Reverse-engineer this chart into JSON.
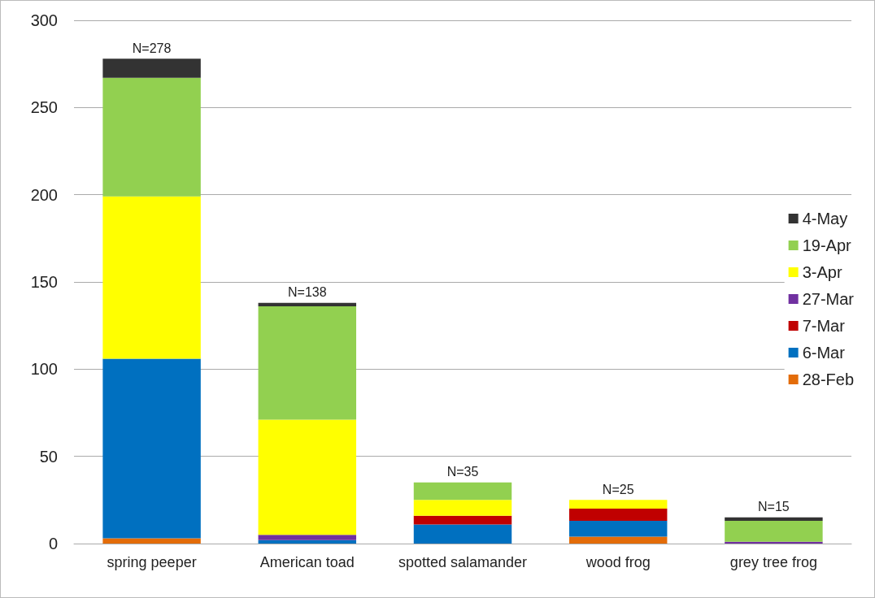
{
  "chart_data": {
    "type": "bar",
    "stacked": true,
    "categories": [
      "spring peeper",
      "American toad",
      "spotted salamander",
      "wood frog",
      "grey tree frog"
    ],
    "series": [
      {
        "name": "28-Feb",
        "color": "#e36c09",
        "values": [
          3,
          null,
          null,
          4,
          null
        ]
      },
      {
        "name": "6-Mar",
        "color": "#0070c0",
        "values": [
          103,
          2,
          11,
          9,
          null
        ]
      },
      {
        "name": "7-Mar",
        "color": "#c00000",
        "values": [
          null,
          null,
          5,
          7,
          null
        ]
      },
      {
        "name": "27-Mar",
        "color": "#7030a0",
        "values": [
          null,
          3,
          null,
          null,
          1
        ]
      },
      {
        "name": "3-Apr",
        "color": "#ffff00",
        "values": [
          93,
          66,
          9,
          5,
          null
        ]
      },
      {
        "name": "19-Apr",
        "color": "#92d050",
        "values": [
          68,
          65,
          10,
          null,
          12
        ]
      },
      {
        "name": "4-May",
        "color": "#333333",
        "values": [
          11,
          2,
          null,
          null,
          2
        ]
      }
    ],
    "totals": [
      "N=278",
      "N=138",
      "N=35",
      "N=25",
      "N=15"
    ],
    "ylim": [
      0,
      300
    ],
    "yticks": [
      0,
      50,
      100,
      150,
      200,
      250,
      300
    ],
    "grid": "y",
    "legend": "right"
  }
}
